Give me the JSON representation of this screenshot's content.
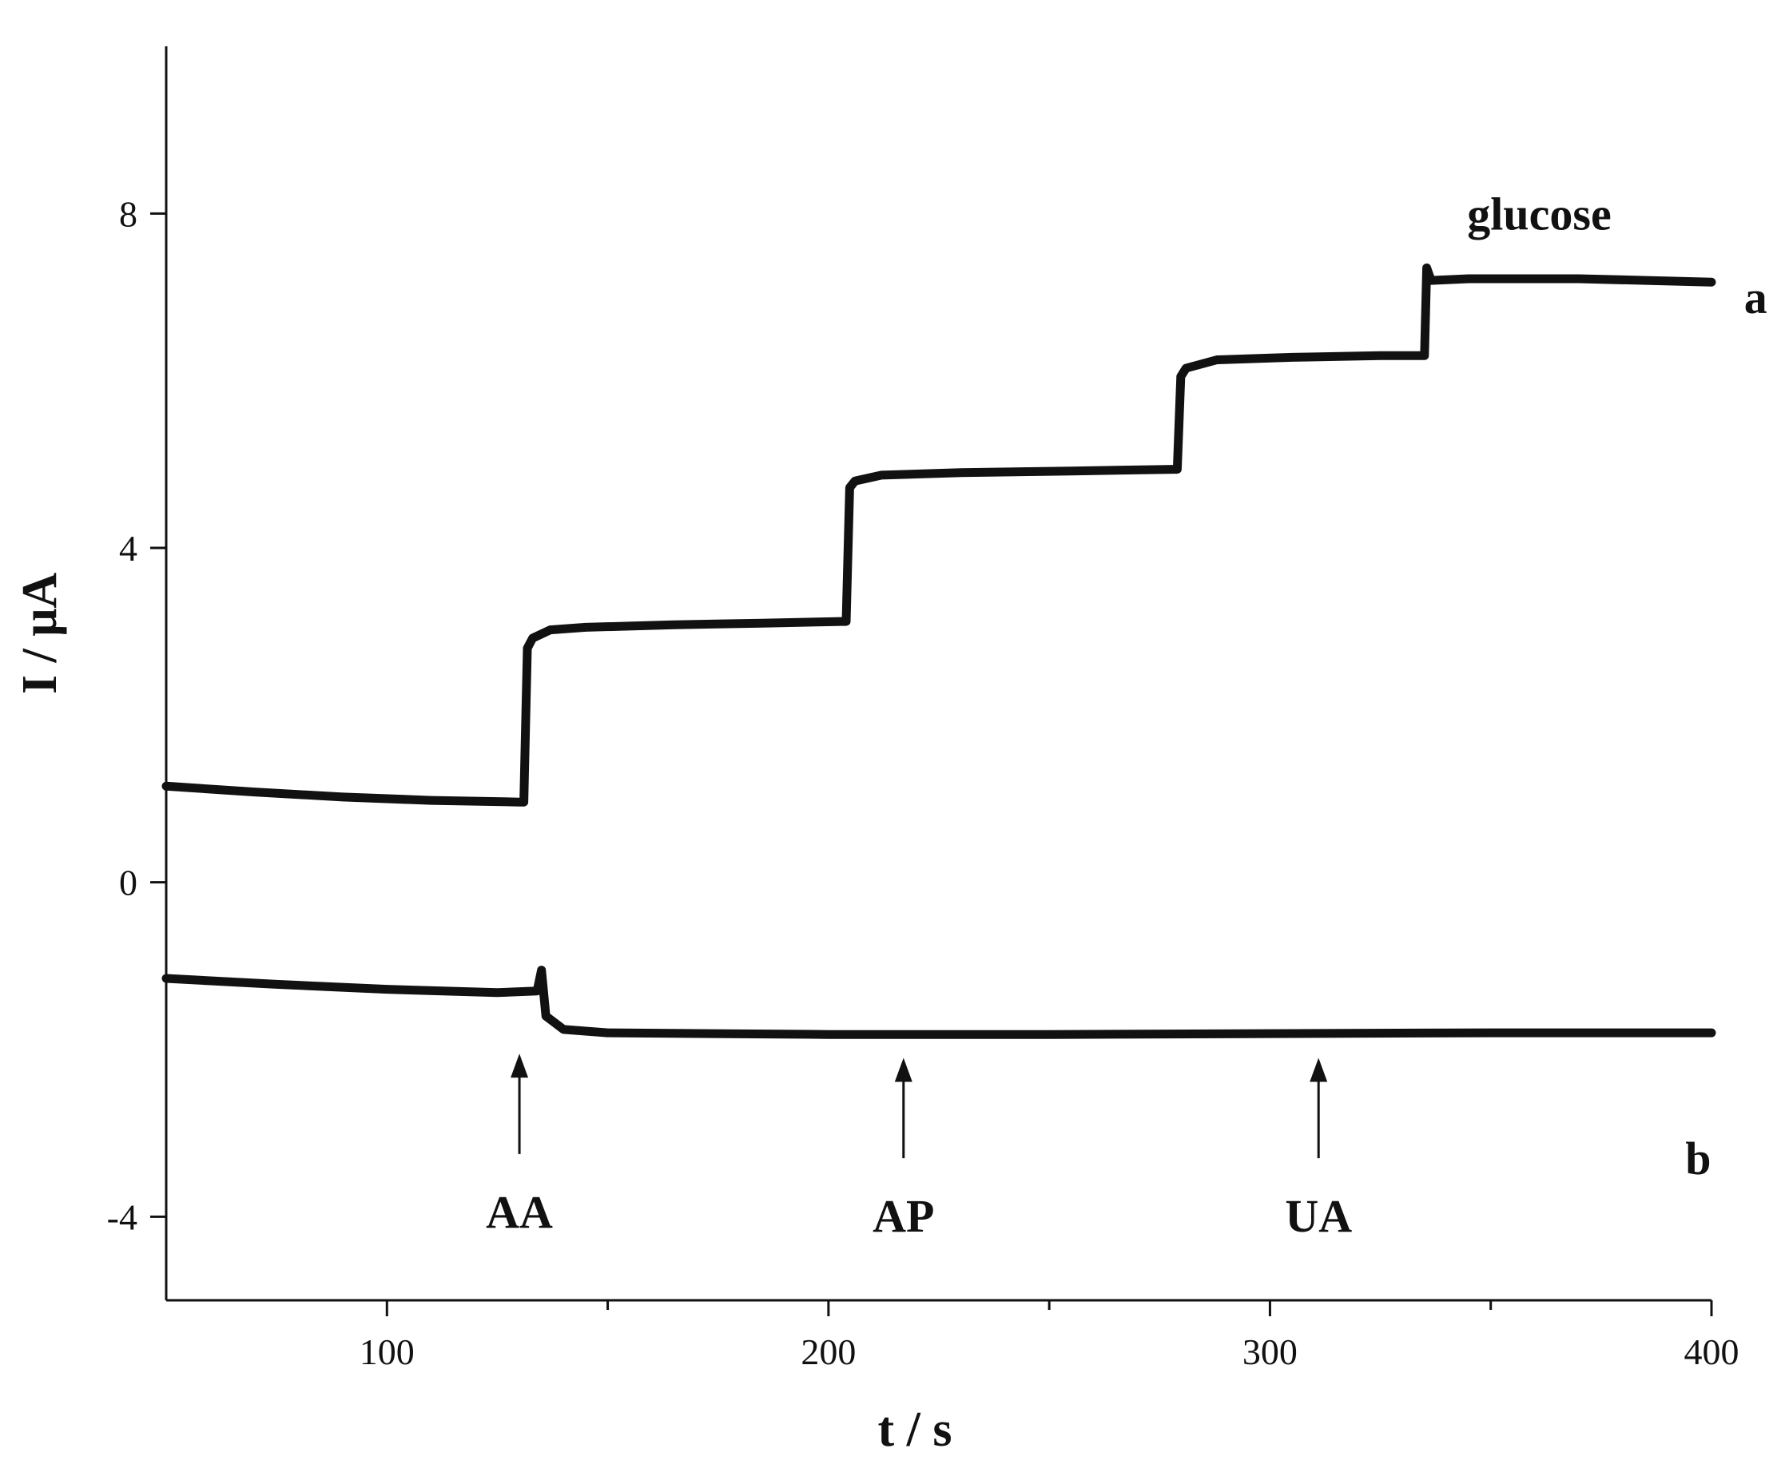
{
  "chart_data": {
    "type": "line",
    "title": "",
    "xlabel": "t  / s",
    "ylabel": "I / μA",
    "xlim": [
      50,
      400
    ],
    "ylim": [
      -5,
      10
    ],
    "x_ticks": [
      {
        "value": 100,
        "label": "100"
      },
      {
        "value": 200,
        "label": "200"
      },
      {
        "value": 300,
        "label": "300"
      },
      {
        "value": 400,
        "label": "400"
      }
    ],
    "x_minor_ticks": [
      150,
      250,
      350
    ],
    "y_ticks": [
      {
        "value": -4,
        "label": "-4"
      },
      {
        "value": 0,
        "label": "0"
      },
      {
        "value": 4,
        "label": "4"
      },
      {
        "value": 8,
        "label": "8"
      }
    ],
    "grid": false,
    "series": [
      {
        "name": "a",
        "x": [
          50,
          70,
          90,
          110,
          130,
          131,
          131.8,
          133,
          137,
          145,
          165,
          185,
          203,
          204,
          204.8,
          206,
          212,
          230,
          255,
          278,
          279,
          279.8,
          281,
          288,
          305,
          325,
          335,
          335.5,
          336.5,
          345,
          370,
          400
        ],
        "y": [
          1.15,
          1.08,
          1.02,
          0.98,
          0.96,
          0.96,
          2.8,
          2.92,
          3.02,
          3.05,
          3.08,
          3.1,
          3.12,
          3.12,
          4.72,
          4.8,
          4.87,
          4.9,
          4.92,
          4.94,
          4.94,
          6.05,
          6.15,
          6.25,
          6.28,
          6.3,
          6.3,
          7.35,
          7.2,
          7.22,
          7.22,
          7.18
        ]
      },
      {
        "name": "b",
        "x": [
          50,
          75,
          100,
          125,
          134,
          135,
          136,
          140,
          150,
          200,
          250,
          300,
          350,
          400
        ],
        "y": [
          -1.15,
          -1.22,
          -1.28,
          -1.32,
          -1.3,
          -1.05,
          -1.6,
          -1.76,
          -1.8,
          -1.82,
          -1.82,
          -1.81,
          -1.8,
          -1.8
        ]
      }
    ],
    "annotations": [
      {
        "text": "glucose",
        "x": 361,
        "y": 8.0
      },
      {
        "text": "a",
        "x": 410,
        "y": 7.0
      },
      {
        "text": "b",
        "x": 397,
        "y": -3.3
      }
    ],
    "arrows": [
      {
        "label": "AA",
        "x": 130,
        "y_tip": -2.05,
        "y_tail": -3.25
      },
      {
        "label": "AP",
        "x": 217,
        "y_tip": -2.1,
        "y_tail": -3.3
      },
      {
        "label": "UA",
        "x": 311,
        "y_tip": -2.1,
        "y_tail": -3.3
      }
    ]
  }
}
